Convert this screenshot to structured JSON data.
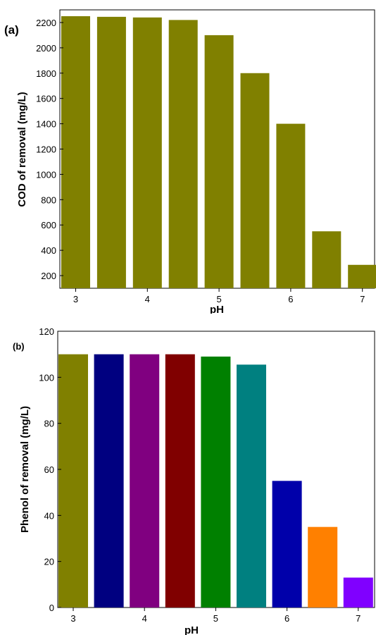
{
  "chart_data": [
    {
      "panel_label": "(a)",
      "type": "bar",
      "categories": [
        "3",
        "3.5",
        "4",
        "4.5",
        "5",
        "5.5",
        "6",
        "6.5",
        "7"
      ],
      "values": [
        2250,
        2245,
        2240,
        2220,
        2100,
        1800,
        1400,
        550,
        285
      ],
      "xlabel": "pH",
      "ylabel": "COD of removal (mg/L)",
      "ylim": [
        100,
        2300
      ],
      "yticks": [
        200,
        400,
        600,
        800,
        1000,
        1200,
        1400,
        1600,
        1800,
        2000,
        2200
      ],
      "xticks": [
        {
          "value": 3,
          "label": "3"
        },
        {
          "value": 4,
          "label": "4"
        },
        {
          "value": 5,
          "label": "5"
        },
        {
          "value": 6,
          "label": "6"
        },
        {
          "value": 7,
          "label": "7"
        }
      ],
      "colors": [
        "#808000",
        "#808000",
        "#808000",
        "#808000",
        "#808000",
        "#808000",
        "#808000",
        "#808000",
        "#808000"
      ],
      "grid": false
    },
    {
      "panel_label": "(b)",
      "type": "bar",
      "categories": [
        "3",
        "3.5",
        "4",
        "4.5",
        "5",
        "5.5",
        "6",
        "6.5",
        "7"
      ],
      "values": [
        110,
        110,
        110,
        110,
        109,
        105.5,
        55,
        35,
        13
      ],
      "xlabel": "pH",
      "ylabel": "Phenol of removal (mg/L)",
      "ylim": [
        0,
        120
      ],
      "yticks": [
        0,
        20,
        40,
        60,
        80,
        100,
        120
      ],
      "xticks": [
        {
          "value": 3,
          "label": "3"
        },
        {
          "value": 4,
          "label": "4"
        },
        {
          "value": 5,
          "label": "5"
        },
        {
          "value": 6,
          "label": "6"
        },
        {
          "value": 7,
          "label": "7"
        }
      ],
      "colors": [
        "#808000",
        "#000080",
        "#800080",
        "#800000",
        "#008000",
        "#008080",
        "#0000AA",
        "#FF8000",
        "#8000FF"
      ],
      "grid": false
    }
  ]
}
